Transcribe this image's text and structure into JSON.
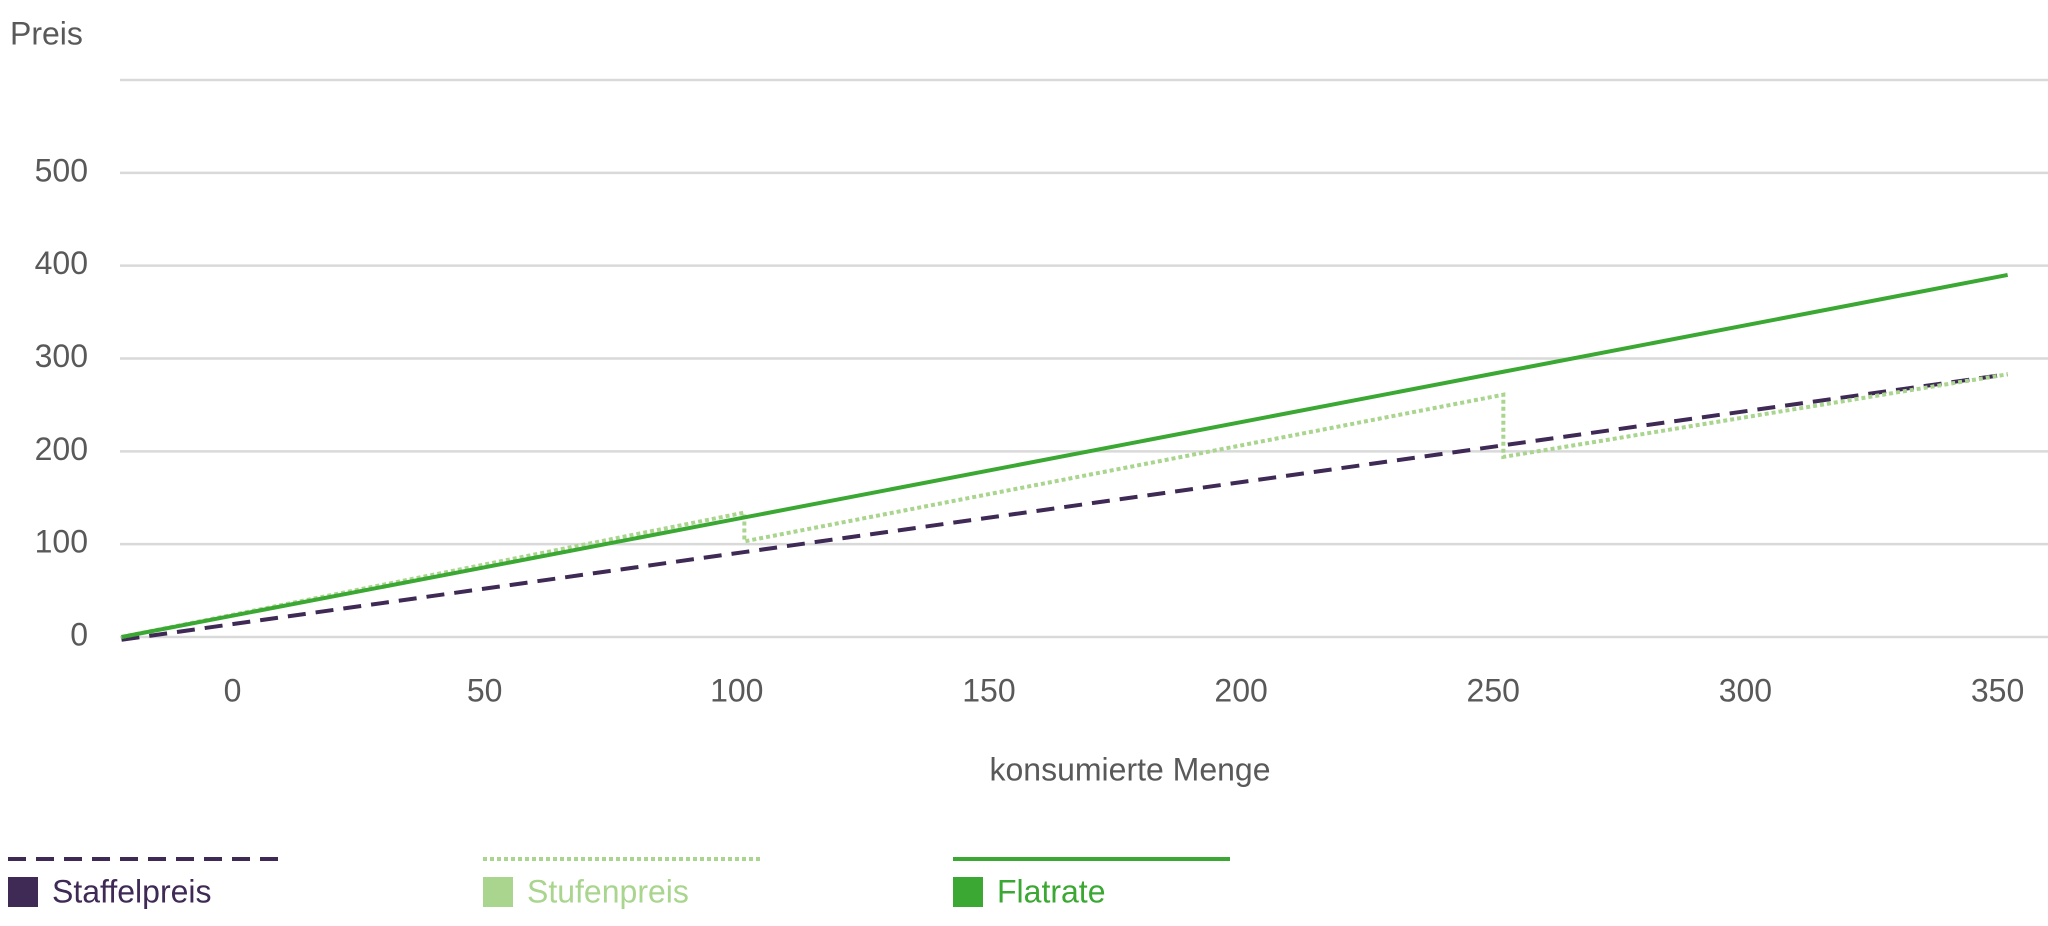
{
  "chart_data": {
    "type": "line",
    "y_label": "Preis",
    "x_label": "konsumierte Menge",
    "x": [
      -22,
      101.5,
      101.5,
      252,
      252,
      352
    ],
    "series": [
      {
        "name": "Staffelpreis",
        "color": "#3f2a56",
        "dash": "dashed",
        "values": [
          -3,
          91.5,
          91.5,
          206.5,
          206.5,
          283
        ]
      },
      {
        "name": "Stufenpreis",
        "color": "#a9d58e",
        "dash": "dotted",
        "values": [
          0,
          134,
          103,
          261,
          194,
          283
        ]
      },
      {
        "name": "Flatrate",
        "color": "#3aa832",
        "dash": "solid",
        "values": [
          0,
          128.8,
          128.8,
          285.7,
          285.7,
          390
        ]
      }
    ],
    "xlim": [
      -22.3,
      360
    ],
    "xticks": [
      0,
      50,
      100,
      150,
      200,
      250,
      300,
      350
    ],
    "ylim": [
      0,
      600
    ],
    "yticks": [
      0,
      100,
      200,
      300,
      400,
      500
    ],
    "grid": true,
    "legend": "bottom"
  }
}
